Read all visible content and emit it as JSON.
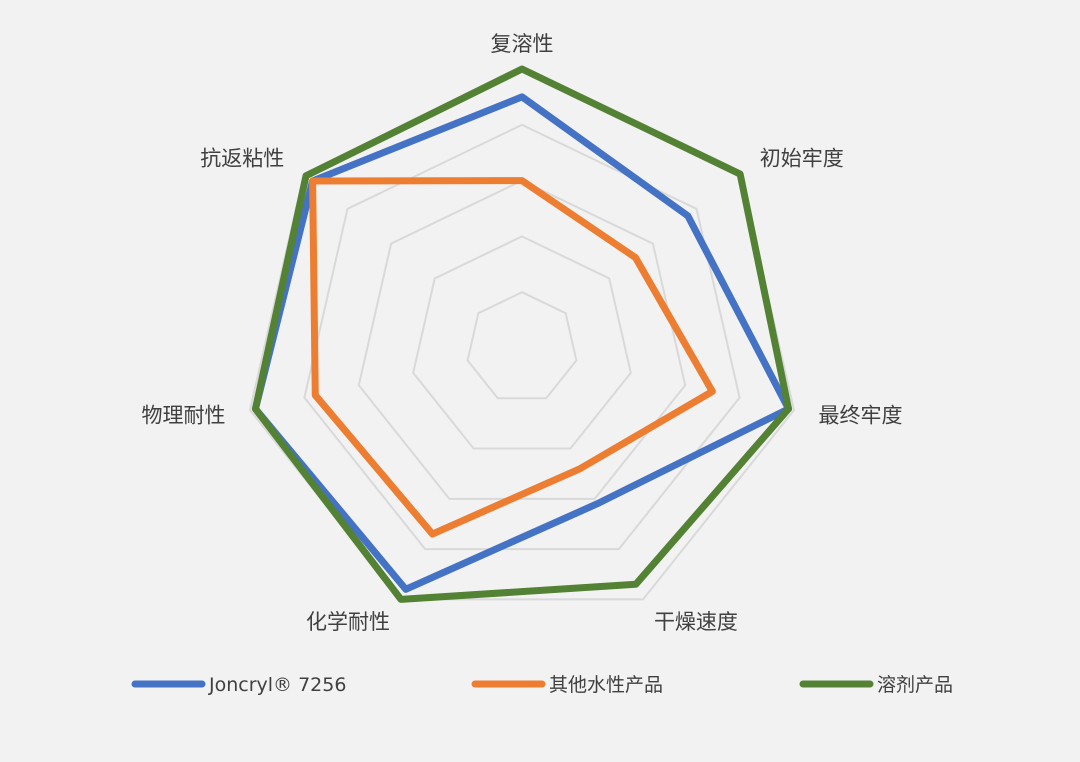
{
  "chart_data": {
    "type": "radar",
    "axes": [
      "复溶性",
      "初始牢度",
      "最终牢度",
      "干燥速度",
      "化学耐性",
      "物理耐性",
      "抗返粘性"
    ],
    "rlim": [
      0,
      5
    ],
    "rings": 5,
    "grid": true,
    "legend_position": "bottom",
    "series": [
      {
        "name": "Joncryl® 7256",
        "color": "#4472c4",
        "values": [
          4.5,
          3.8,
          4.9,
          3.1,
          4.8,
          4.9,
          4.8
        ]
      },
      {
        "name": "其他水性产品",
        "color": "#ed7d31",
        "values": [
          3.0,
          2.6,
          3.5,
          2.4,
          3.7,
          3.8,
          4.8
        ]
      },
      {
        "name": "溶剂产品",
        "color": "#548235",
        "values": [
          5.0,
          5.0,
          4.9,
          4.7,
          5.0,
          4.9,
          4.95
        ]
      }
    ]
  }
}
